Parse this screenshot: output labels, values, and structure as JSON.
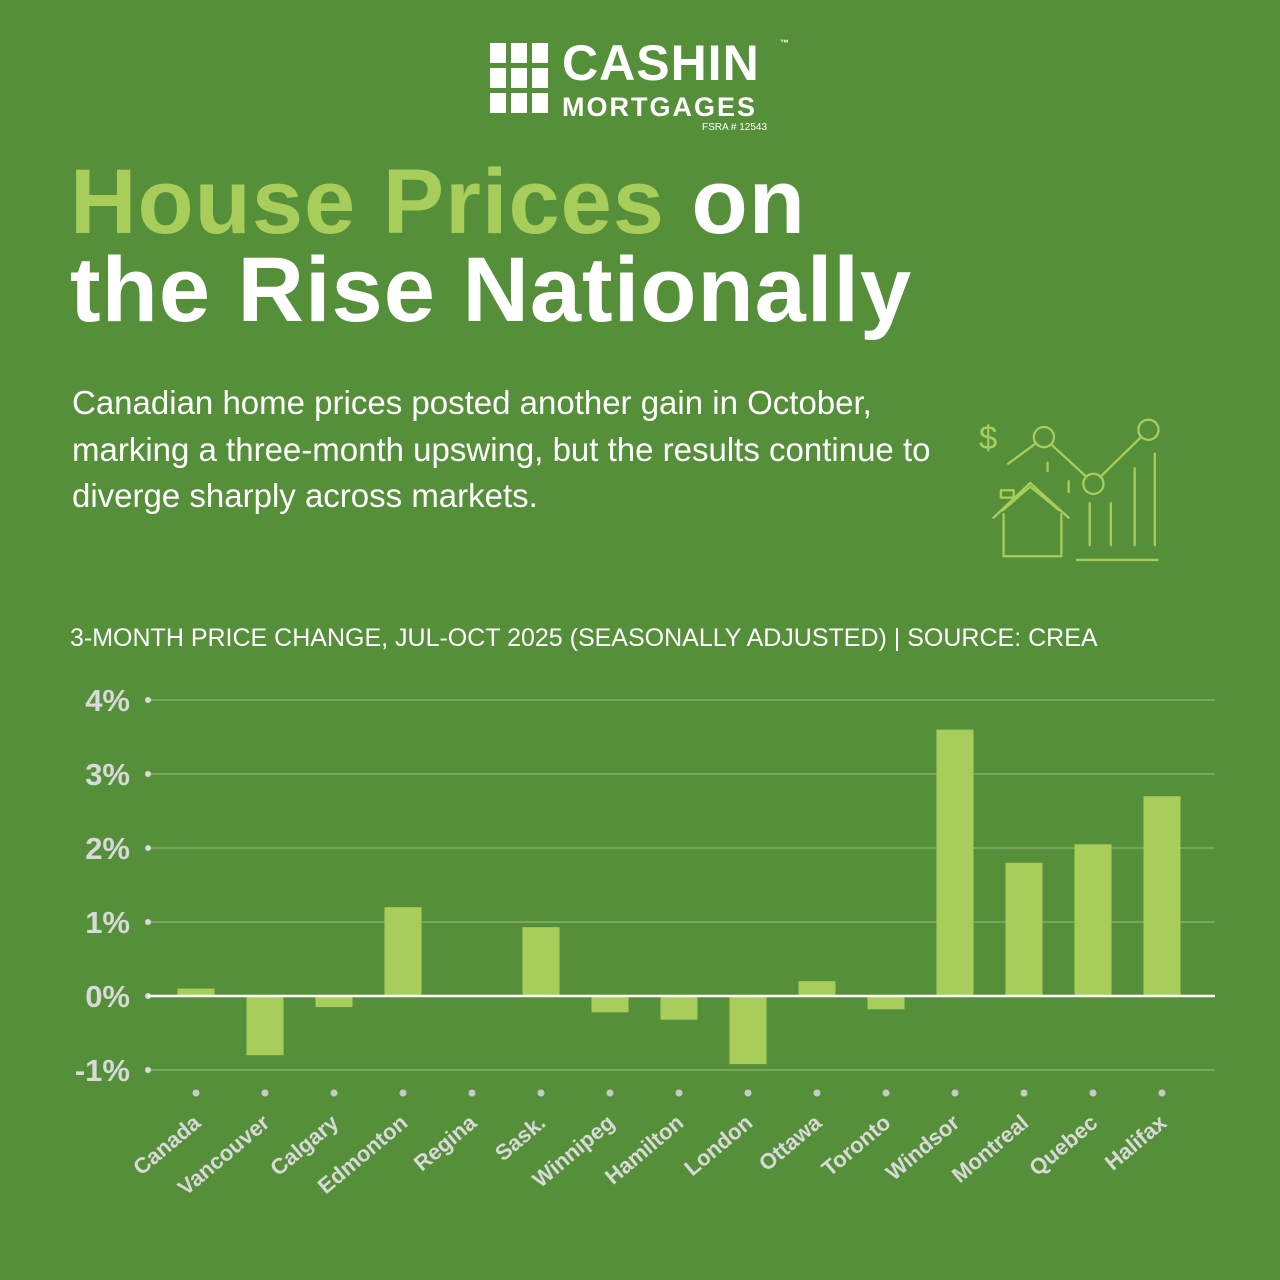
{
  "logo": {
    "name": "CASHIN",
    "tm": "™",
    "sub": "MORTGAGES",
    "license": "FSRA # 12543"
  },
  "title": {
    "highlight": "House Prices",
    "rest1": " on",
    "line2": "the Rise Nationally"
  },
  "description": "Canadian home prices posted another gain in October, marking a three-month upswing, but the results continue to diverge sharply across markets.",
  "colors": {
    "background": "#568f3a",
    "accent": "#a8cd5a",
    "zero_line": "#ffffff"
  },
  "chart_data": {
    "type": "bar",
    "title": "3-Month Price Change, Jul-Oct 2025 (Seasonally Adjusted) | Source: CREA",
    "xlabel": "",
    "ylabel": "",
    "ylim": [
      -1,
      4
    ],
    "yticks": [
      4,
      3,
      2,
      1,
      0,
      -1
    ],
    "ytick_labels": [
      "4%",
      "3%",
      "2%",
      "1%",
      "0%",
      "-1%"
    ],
    "grid": true,
    "categories": [
      "Canada",
      "Vancouver",
      "Calgary",
      "Edmonton",
      "Regina",
      "Sask.",
      "Winnipeg",
      "Hamilton",
      "London",
      "Ottawa",
      "Toronto",
      "Windsor",
      "Montreal",
      "Quebec",
      "Halifax"
    ],
    "values": [
      0.1,
      -0.8,
      -0.15,
      1.2,
      0.0,
      0.93,
      -0.22,
      -0.32,
      -0.92,
      0.2,
      -0.18,
      3.6,
      1.8,
      2.05,
      2.7
    ]
  }
}
